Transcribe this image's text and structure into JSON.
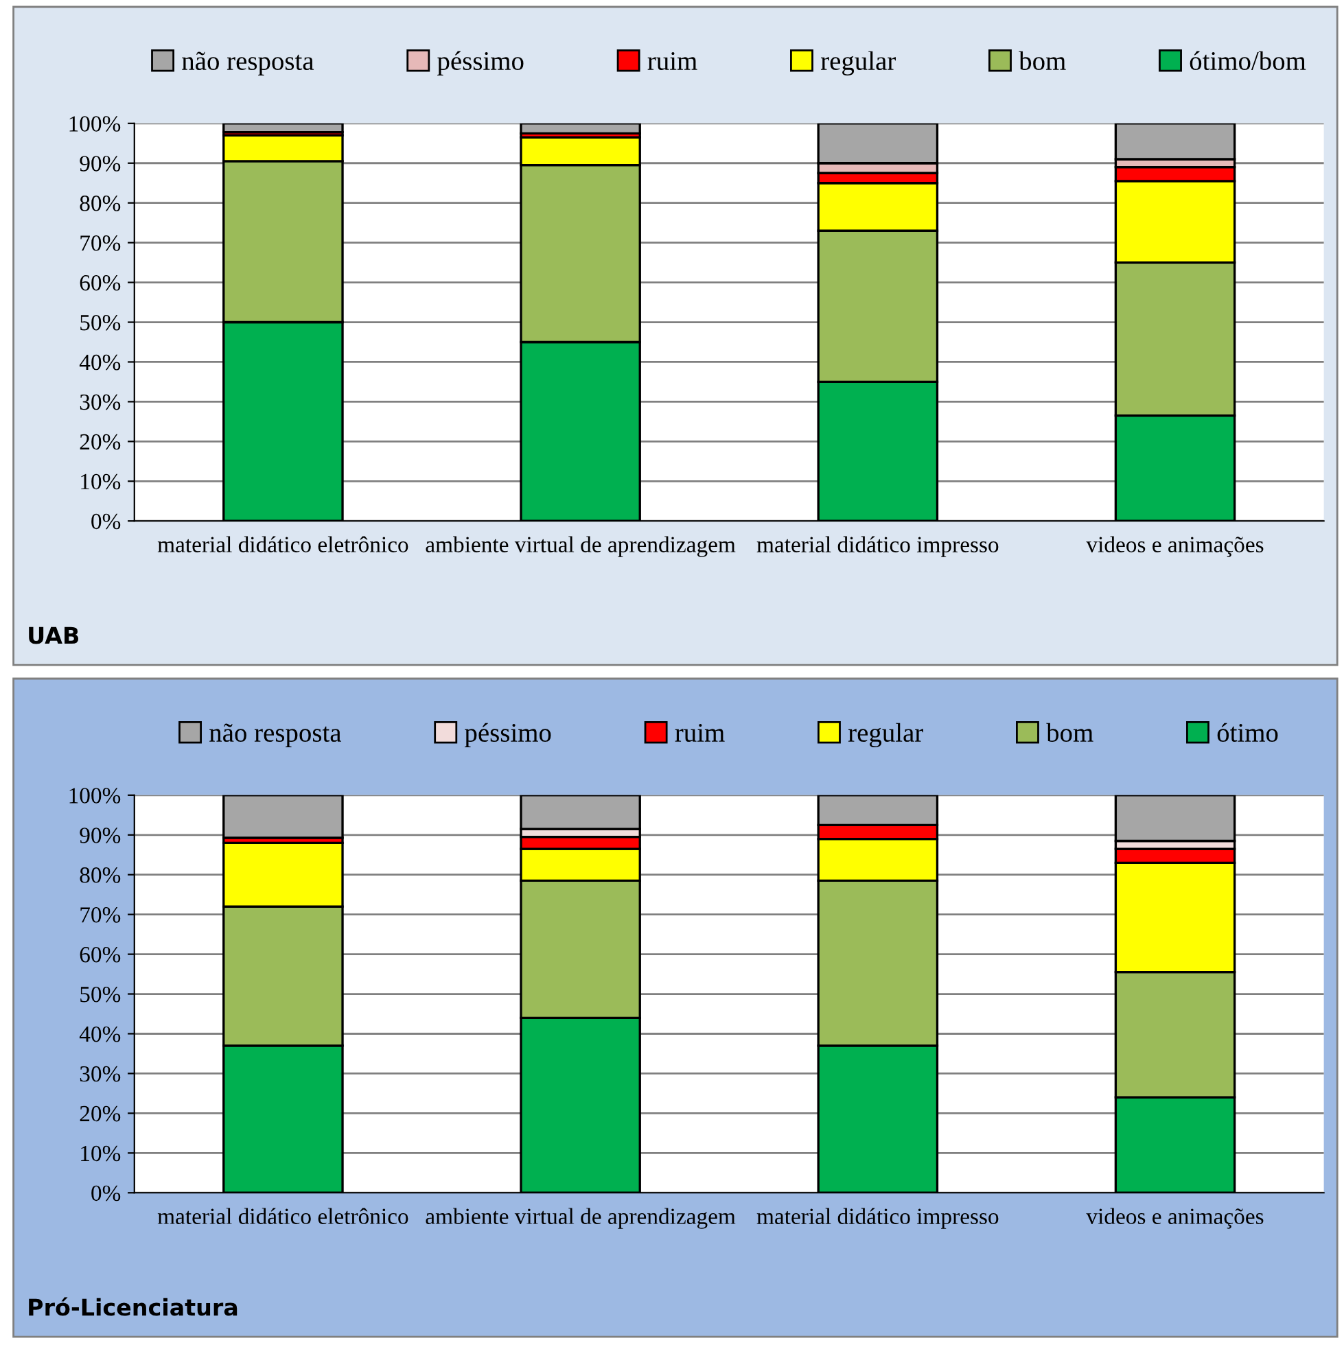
{
  "chart_data": [
    {
      "type": "bar",
      "title": "UAB",
      "stacked": true,
      "legend": "top",
      "grid": "y",
      "categories": [
        "material didático eletrônico",
        "ambiente virtual de aprendizagem",
        "material didático impresso",
        "videos e animações"
      ],
      "ylim": [
        0,
        100
      ],
      "yticks": [
        {
          "value": 0,
          "label": "0%"
        },
        {
          "value": 10,
          "label": "10%"
        },
        {
          "value": 20,
          "label": "20%"
        },
        {
          "value": 30,
          "label": "30%"
        },
        {
          "value": 40,
          "label": "40%"
        },
        {
          "value": 50,
          "label": "50%"
        },
        {
          "value": 60,
          "label": "60%"
        },
        {
          "value": 70,
          "label": "70%"
        },
        {
          "value": 80,
          "label": "80%"
        },
        {
          "value": 90,
          "label": "90%"
        },
        {
          "value": 100,
          "label": "100%"
        }
      ],
      "series": [
        {
          "name": "ótimo/bom",
          "color": "#00b050",
          "values": [
            50,
            45,
            35,
            26.5
          ]
        },
        {
          "name": "bom",
          "color": "#9bbb59",
          "values": [
            40.5,
            44.5,
            38,
            38.5
          ]
        },
        {
          "name": "regular",
          "color": "#ffff00",
          "values": [
            6.5,
            7,
            12,
            20.5
          ]
        },
        {
          "name": "ruim",
          "color": "#ff0000",
          "values": [
            0.8,
            1,
            2.5,
            3.5
          ]
        },
        {
          "name": "péssimo",
          "color": "#e6b9b8",
          "values": [
            null,
            null,
            2.5,
            2
          ]
        },
        {
          "name": "não resposta",
          "color": "#a6a6a6",
          "values": [
            2.2,
            2.5,
            10,
            9
          ]
        }
      ]
    },
    {
      "type": "bar",
      "title": "Pró-Licenciatura",
      "stacked": true,
      "legend": "top",
      "grid": "y",
      "categories": [
        "material didático eletrônico",
        "ambiente virtual de aprendizagem",
        "material didático impresso",
        "videos e animações"
      ],
      "ylim": [
        0,
        100
      ],
      "yticks": [
        {
          "value": 0,
          "label": "0%"
        },
        {
          "value": 10,
          "label": "10%"
        },
        {
          "value": 20,
          "label": "20%"
        },
        {
          "value": 30,
          "label": "30%"
        },
        {
          "value": 40,
          "label": "40%"
        },
        {
          "value": 50,
          "label": "50%"
        },
        {
          "value": 60,
          "label": "60%"
        },
        {
          "value": 70,
          "label": "70%"
        },
        {
          "value": 80,
          "label": "80%"
        },
        {
          "value": 90,
          "label": "90%"
        },
        {
          "value": 100,
          "label": "100%"
        }
      ],
      "series": [
        {
          "name": "ótimo",
          "color": "#00b050",
          "values": [
            37,
            44,
            37,
            24
          ]
        },
        {
          "name": "bom",
          "color": "#9bbb59",
          "values": [
            35,
            34.5,
            41.5,
            31.5
          ]
        },
        {
          "name": "regular",
          "color": "#ffff00",
          "values": [
            16,
            8,
            10.5,
            27.5
          ]
        },
        {
          "name": "ruim",
          "color": "#ff0000",
          "values": [
            1.3,
            3,
            3.5,
            3.5
          ]
        },
        {
          "name": "péssimo",
          "color": "#f2dcdb",
          "values": [
            null,
            2,
            0,
            2
          ]
        },
        {
          "name": "não resposta",
          "color": "#a6a6a6",
          "values": [
            10.7,
            8.5,
            7.5,
            11.5
          ]
        }
      ]
    }
  ]
}
